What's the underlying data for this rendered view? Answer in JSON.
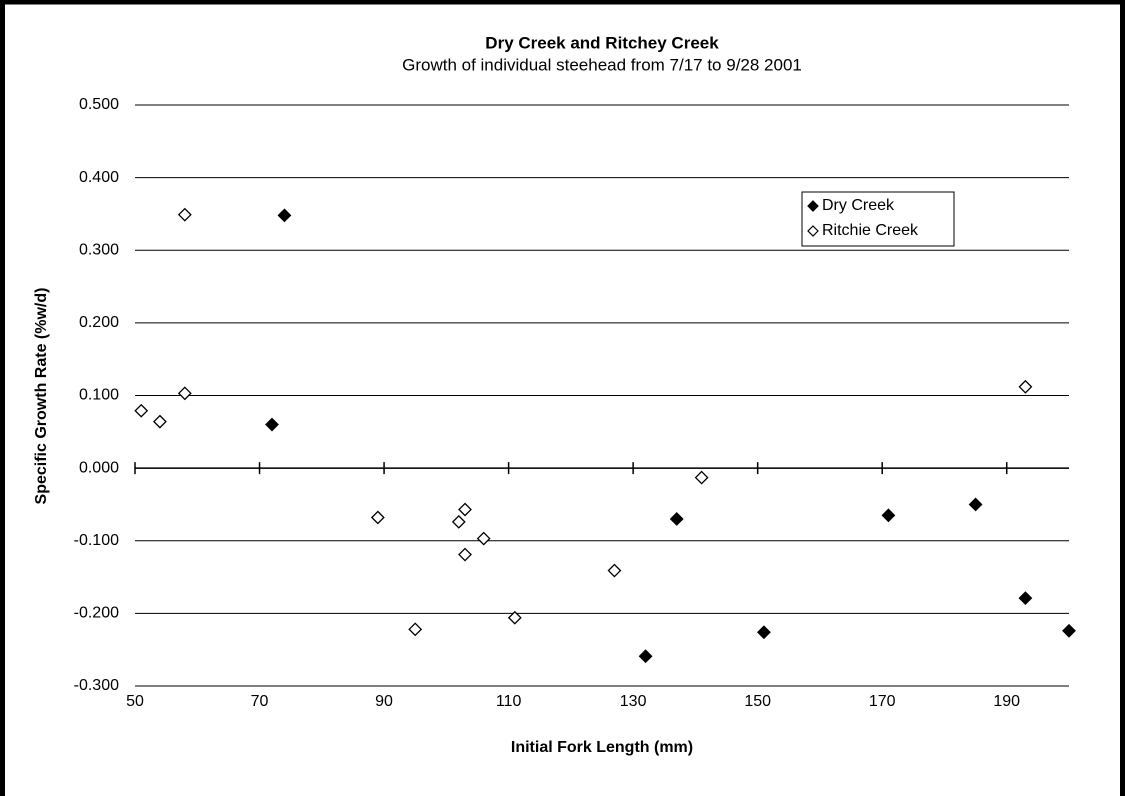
{
  "chart_data": {
    "type": "scatter",
    "title": "Dry Creek and Ritchey Creek",
    "subtitle": "Growth of individual steehead from 7/17 to 9/28 2001",
    "xlabel": "Initial Fork Length (mm)",
    "ylabel": "Specific Growth Rate (%w/d)",
    "xlim": [
      50,
      200
    ],
    "xticks": [
      50,
      70,
      90,
      110,
      130,
      150,
      170,
      190
    ],
    "ylim": [
      -0.3,
      0.5
    ],
    "yticks": [
      {
        "value": 0.5,
        "label": "0.500"
      },
      {
        "value": 0.4,
        "label": "0.400"
      },
      {
        "value": 0.3,
        "label": "0.300"
      },
      {
        "value": 0.2,
        "label": "0.200"
      },
      {
        "value": 0.1,
        "label": "0.100"
      },
      {
        "value": 0,
        "label": "0.000"
      },
      {
        "value": -0.1,
        "label": "-0.100"
      },
      {
        "value": -0.2,
        "label": "-0.200"
      },
      {
        "value": -0.3,
        "label": "-0.300"
      }
    ],
    "grid": true,
    "legend": "upper right",
    "series": [
      {
        "name": "Dry Creek",
        "color": "#000000",
        "filled": true,
        "x": [
          74,
          72,
          137,
          132,
          151,
          171,
          185,
          193,
          200
        ],
        "values": [
          0.348,
          0.06,
          -0.07,
          -0.259,
          -0.226,
          -0.065,
          -0.05,
          -0.179,
          -0.224
        ]
      },
      {
        "name": "Ritchie Creek",
        "color": "#000000",
        "filled": false,
        "x": [
          58,
          58,
          51,
          54,
          89,
          95,
          102,
          103,
          103,
          106,
          111,
          127,
          141,
          193
        ],
        "values": [
          0.349,
          0.103,
          0.079,
          0.064,
          -0.068,
          -0.222,
          -0.074,
          -0.057,
          -0.119,
          -0.097,
          -0.206,
          -0.141,
          -0.013,
          0.112
        ]
      }
    ]
  }
}
